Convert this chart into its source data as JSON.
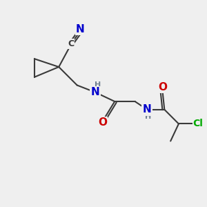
{
  "bg_color": "#efefef",
  "bond_color": "#3a3a3a",
  "bond_width": 1.5,
  "atom_colors": {
    "N": "#0000cc",
    "O": "#cc0000",
    "Cl": "#00aa00",
    "C_label": "#3a3a3a",
    "H": "#708090"
  },
  "font_size_large": 11,
  "font_size_medium": 9,
  "font_size_small": 8,
  "figsize": [
    3.0,
    3.0
  ],
  "dpi": 100,
  "xlim": [
    0,
    10
  ],
  "ylim": [
    0,
    10
  ]
}
